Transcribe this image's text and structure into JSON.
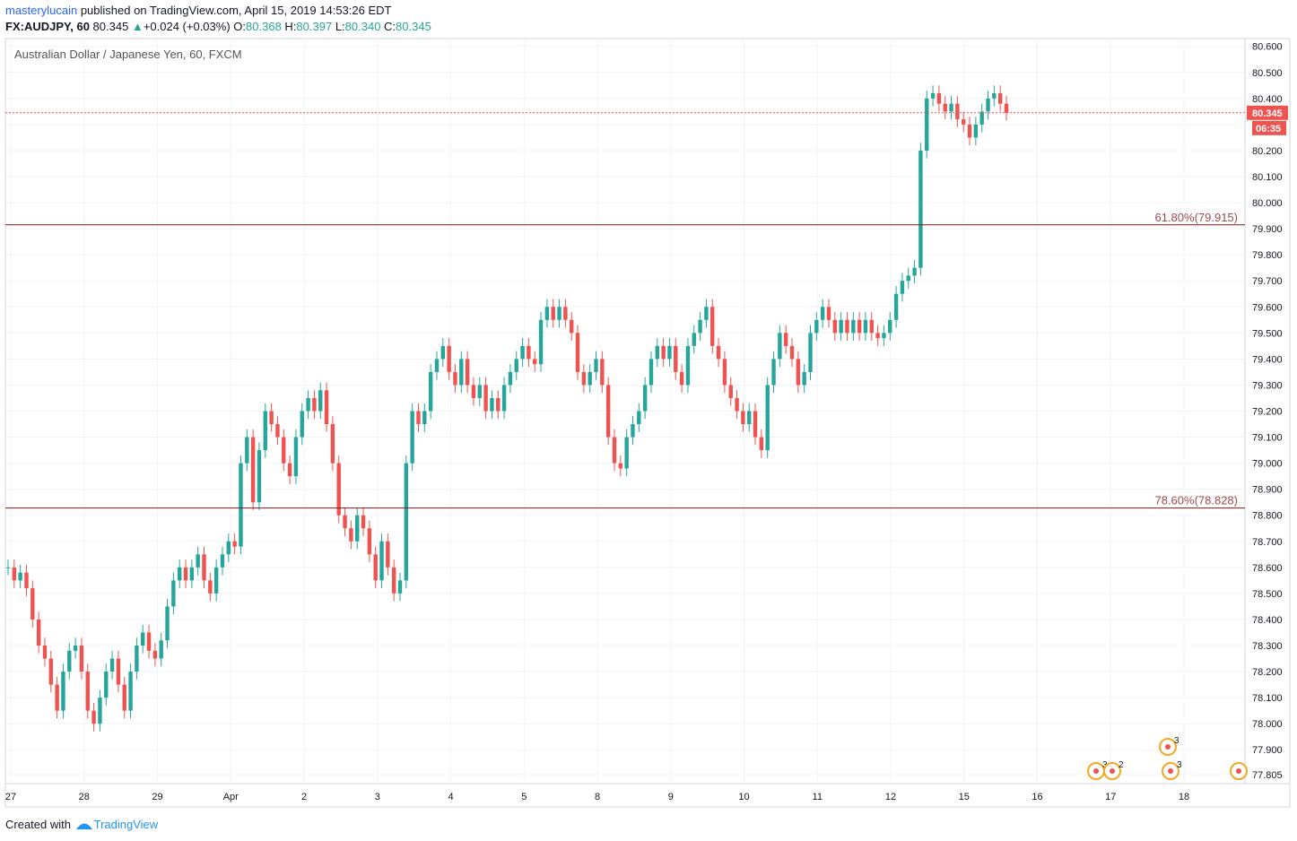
{
  "header": {
    "user": "masterylucain",
    "published_text": " published on TradingView.com, April 15, 2019 14:53:26 EDT",
    "symbol": "FX:AUDJPY, 60",
    "last": "80.345",
    "change_arrow": "▲",
    "change": "+0.024 (+0.03%)",
    "o_label": "O:",
    "o_value": "80.368",
    "h_label": "H:",
    "h_value": "80.397",
    "l_label": "L:",
    "l_value": "80.340",
    "c_label": "C:",
    "c_value": "80.345"
  },
  "pane_title": "Australian Dollar / Japanese Yen, 60, FXCM",
  "footer": {
    "created_with": "Created with",
    "brand": "TradingView",
    "logo_icon": "tradingview-logo-icon"
  },
  "colors": {
    "up": "#26a69a",
    "down": "#ef5350",
    "fib_line": "#7b1a1a",
    "fib_text": "#a04a4a",
    "price_tag": "#ef5350",
    "grid": "#f0f3fa"
  },
  "chart_data": {
    "type": "candlestick",
    "title": "Australian Dollar / Japanese Yen, 60, FXCM",
    "ylim": [
      77.77,
      80.63
    ],
    "y_ticks": [
      "80.600",
      "80.500",
      "80.400",
      "80.300",
      "80.200",
      "80.100",
      "80.000",
      "79.900",
      "79.800",
      "79.700",
      "79.600",
      "79.500",
      "79.400",
      "79.300",
      "79.200",
      "79.100",
      "79.000",
      "78.900",
      "78.800",
      "78.700",
      "78.600",
      "78.500",
      "78.400",
      "78.300",
      "78.200",
      "78.100",
      "78.000",
      "77.900",
      "77.805"
    ],
    "x_ticks": [
      "27",
      "28",
      "29",
      "Apr",
      "2",
      "3",
      "4",
      "5",
      "8",
      "9",
      "10",
      "11",
      "12",
      "15",
      "16",
      "17",
      "18"
    ],
    "grid": true,
    "last_price": "80.345",
    "countdown": "06:35",
    "fib_levels": [
      {
        "label": "61.80%(79.915)",
        "value": 79.915
      },
      {
        "label": "78.60%(78.828)",
        "value": 78.828
      }
    ],
    "closes": [
      78.6,
      78.55,
      78.58,
      78.52,
      78.4,
      78.3,
      78.25,
      78.15,
      78.05,
      78.2,
      78.28,
      78.3,
      78.2,
      78.05,
      78.0,
      78.1,
      78.2,
      78.25,
      78.15,
      78.05,
      78.2,
      78.3,
      78.35,
      78.28,
      78.25,
      78.32,
      78.45,
      78.55,
      78.6,
      78.55,
      78.6,
      78.65,
      78.55,
      78.5,
      78.6,
      78.65,
      78.7,
      78.68,
      79.0,
      79.1,
      78.85,
      79.05,
      79.2,
      79.15,
      79.1,
      79.0,
      78.95,
      79.1,
      79.2,
      79.25,
      79.2,
      79.28,
      79.15,
      79.0,
      78.8,
      78.75,
      78.7,
      78.8,
      78.75,
      78.65,
      78.55,
      78.7,
      78.6,
      78.5,
      78.55,
      79.0,
      79.2,
      79.15,
      79.2,
      79.35,
      79.4,
      79.45,
      79.35,
      79.3,
      79.4,
      79.3,
      79.25,
      79.3,
      79.2,
      79.25,
      79.2,
      79.3,
      79.35,
      79.4,
      79.45,
      79.4,
      79.38,
      79.55,
      79.6,
      79.55,
      79.6,
      79.55,
      79.5,
      79.35,
      79.3,
      79.35,
      79.4,
      79.3,
      79.1,
      79.0,
      78.98,
      79.1,
      79.15,
      79.2,
      79.3,
      79.4,
      79.45,
      79.4,
      79.45,
      79.35,
      79.3,
      79.45,
      79.5,
      79.55,
      79.6,
      79.45,
      79.4,
      79.3,
      79.25,
      79.2,
      79.15,
      79.2,
      79.1,
      79.05,
      79.3,
      79.4,
      79.5,
      79.45,
      79.4,
      79.3,
      79.35,
      79.5,
      79.55,
      79.6,
      79.55,
      79.5,
      79.55,
      79.5,
      79.55,
      79.5,
      79.55,
      79.5,
      79.48,
      79.5,
      79.55,
      79.65,
      79.7,
      79.72,
      79.75,
      80.2,
      80.4,
      80.42,
      80.38,
      80.35,
      80.38,
      80.32,
      80.3,
      80.25,
      80.3,
      80.35,
      80.4,
      80.42,
      80.38,
      80.345
    ]
  }
}
